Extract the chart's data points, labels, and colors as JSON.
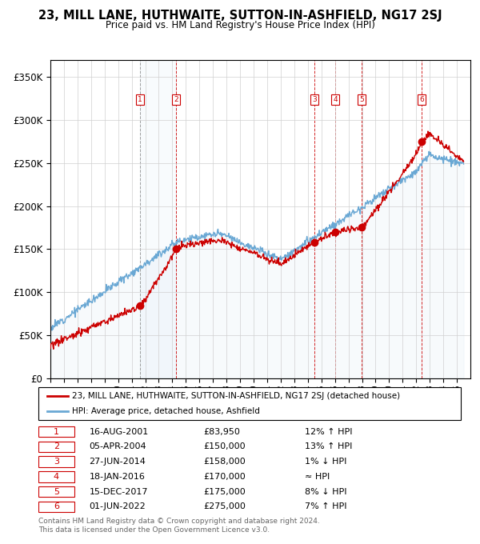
{
  "title": "23, MILL LANE, HUTHWAITE, SUTTON-IN-ASHFIELD, NG17 2SJ",
  "subtitle": "Price paid vs. HM Land Registry's House Price Index (HPI)",
  "sold_dates_num": [
    2001.626,
    2004.257,
    2014.487,
    2016.046,
    2017.956,
    2022.414
  ],
  "sold_prices": [
    83950,
    150000,
    158000,
    170000,
    175000,
    275000
  ],
  "sold_labels": [
    "1",
    "2",
    "3",
    "4",
    "5",
    "6"
  ],
  "table_rows": [
    [
      "1",
      "16-AUG-2001",
      "£83,950",
      "12% ↑ HPI"
    ],
    [
      "2",
      "05-APR-2004",
      "£150,000",
      "13% ↑ HPI"
    ],
    [
      "3",
      "27-JUN-2014",
      "£158,000",
      "1% ↓ HPI"
    ],
    [
      "4",
      "18-JAN-2016",
      "£170,000",
      "≈ HPI"
    ],
    [
      "5",
      "15-DEC-2017",
      "£175,000",
      "8% ↓ HPI"
    ],
    [
      "6",
      "01-JUN-2022",
      "£275,000",
      "7% ↑ HPI"
    ]
  ],
  "legend_labels": [
    "23, MILL LANE, HUTHWAITE, SUTTON-IN-ASHFIELD, NG17 2SJ (detached house)",
    "HPI: Average price, detached house, Ashfield"
  ],
  "hpi_color": "#6aa8d4",
  "hpi_fill_color": "#cce0f0",
  "price_color": "#cc0000",
  "vline_color_red": "#cc0000",
  "vline_color_gray": "#888888",
  "background_color": "#ffffff",
  "ylim": [
    0,
    370000
  ],
  "yticks": [
    0,
    50000,
    100000,
    150000,
    200000,
    250000,
    300000,
    350000
  ],
  "ytick_labels": [
    "£0",
    "£50K",
    "£100K",
    "£150K",
    "£200K",
    "£250K",
    "£300K",
    "£350K"
  ],
  "xmin": 1995.0,
  "xmax": 2026.0,
  "footer": "Contains HM Land Registry data © Crown copyright and database right 2024.\nThis data is licensed under the Open Government Licence v3.0."
}
